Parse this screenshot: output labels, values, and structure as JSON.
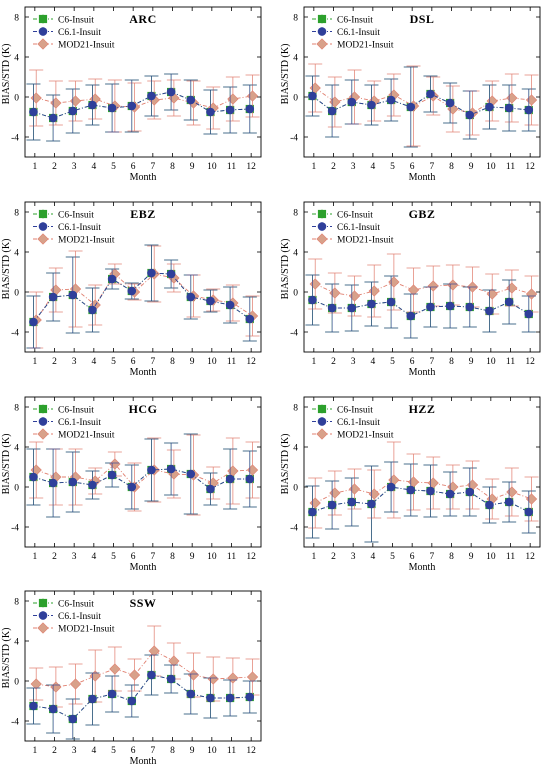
{
  "chart_data": {
    "type": "scatter",
    "x_label": "Month",
    "y_label": "BIAS/STD (K)",
    "x_ticks": [
      1,
      2,
      3,
      4,
      5,
      6,
      7,
      8,
      9,
      10,
      11,
      12
    ],
    "y_ticks": [
      -4,
      0,
      4,
      8
    ],
    "ylim": [
      -6,
      9
    ],
    "xlim": [
      0.5,
      12.5
    ],
    "legend_position": "top-left",
    "series_styles": [
      {
        "name": "C6-Insuit",
        "color": "#2ca02c",
        "marker": "square",
        "line": "dash-dot"
      },
      {
        "name": "C6.1-Insuit",
        "color": "#2f3f9a",
        "marker": "circle",
        "line": "dash-dot"
      },
      {
        "name": "MOD21-Insuit",
        "color": "#e07f6f",
        "marker_color": "#d8a18a",
        "marker": "diamond",
        "line": "dash-dot"
      }
    ],
    "panels": [
      {
        "title": "ARC",
        "series": [
          {
            "name": "C6-Insuit",
            "values": [
              -1.5,
              -2.1,
              -1.4,
              -0.8,
              -1.1,
              -0.9,
              0.1,
              0.5,
              -0.3,
              -1.5,
              -1.3,
              -1.2
            ],
            "std": [
              2.8,
              2.3,
              2.2,
              2.0,
              2.4,
              2.6,
              2.0,
              1.8,
              2.0,
              2.2,
              2.3,
              2.4
            ]
          },
          {
            "name": "C6.1-Insuit",
            "values": [
              -1.5,
              -2.1,
              -1.4,
              -0.8,
              -1.1,
              -0.9,
              0.1,
              0.5,
              -0.3,
              -1.5,
              -1.3,
              -1.2
            ],
            "std": [
              2.8,
              2.3,
              2.2,
              2.0,
              2.4,
              2.6,
              2.0,
              1.8,
              2.0,
              2.2,
              2.3,
              2.4
            ]
          },
          {
            "name": "MOD21-Insuit",
            "values": [
              -0.1,
              -0.6,
              -0.4,
              -0.2,
              -0.9,
              -1.0,
              -0.3,
              -0.1,
              -0.6,
              -1.1,
              -0.2,
              0.1
            ],
            "std": [
              2.8,
              2.2,
              2.0,
              2.0,
              2.6,
              2.4,
              1.9,
              1.8,
              2.2,
              2.1,
              2.2,
              2.1
            ]
          }
        ]
      },
      {
        "title": "DSL",
        "series": [
          {
            "name": "C6-Insuit",
            "values": [
              0.1,
              -1.4,
              -0.5,
              -0.8,
              -0.3,
              -1.0,
              0.3,
              -0.6,
              -1.8,
              -1.0,
              -1.1,
              -1.3
            ],
            "std": [
              2.0,
              2.6,
              2.2,
              2.0,
              2.1,
              4.0,
              1.8,
              2.0,
              2.4,
              2.2,
              2.3,
              2.1
            ]
          },
          {
            "name": "C6.1-Insuit",
            "values": [
              0.1,
              -1.4,
              -0.5,
              -0.8,
              -0.3,
              -1.0,
              0.3,
              -0.6,
              -1.8,
              -1.0,
              -1.1,
              -1.3
            ],
            "std": [
              2.0,
              2.6,
              2.2,
              2.0,
              2.1,
              4.0,
              1.8,
              2.0,
              2.4,
              2.2,
              2.3,
              2.1
            ]
          },
          {
            "name": "MOD21-Insuit",
            "values": [
              0.9,
              -0.5,
              0.0,
              -0.4,
              0.2,
              -0.9,
              0.1,
              -1.2,
              -1.6,
              -0.4,
              -0.1,
              -0.3
            ],
            "std": [
              2.4,
              2.5,
              2.7,
              2.0,
              2.1,
              4.0,
              1.9,
              2.3,
              2.2,
              2.0,
              2.4,
              2.5
            ]
          }
        ]
      },
      {
        "title": "EBZ",
        "series": [
          {
            "name": "C6-Insuit",
            "values": [
              -3.0,
              -0.5,
              -0.3,
              -1.8,
              1.3,
              0.1,
              1.9,
              1.8,
              -0.5,
              -0.9,
              -1.3,
              -2.7
            ],
            "std": [
              2.6,
              2.4,
              3.8,
              2.2,
              1.0,
              0.8,
              2.8,
              1.4,
              2.2,
              1.1,
              1.8,
              2.2
            ]
          },
          {
            "name": "C6.1-Insuit",
            "values": [
              -3.0,
              -0.5,
              -0.3,
              -1.8,
              1.3,
              0.1,
              1.9,
              1.8,
              -0.5,
              -0.9,
              -1.3,
              -2.7
            ],
            "std": [
              2.6,
              2.4,
              3.8,
              2.2,
              1.0,
              0.8,
              2.8,
              1.4,
              2.2,
              1.1,
              1.8,
              2.2
            ]
          },
          {
            "name": "MOD21-Insuit",
            "values": [
              -2.8,
              0.2,
              0.3,
              -1.3,
              1.8,
              0.0,
              1.8,
              1.4,
              -0.4,
              -0.8,
              -1.1,
              -2.4
            ],
            "std": [
              2.8,
              2.2,
              3.8,
              2.0,
              1.0,
              0.8,
              2.8,
              1.4,
              2.1,
              1.1,
              1.8,
              2.0
            ]
          }
        ]
      },
      {
        "title": "GBZ",
        "series": [
          {
            "name": "C6-Insuit",
            "values": [
              -0.8,
              -1.6,
              -1.6,
              -1.2,
              -1.0,
              -2.4,
              -1.5,
              -1.4,
              -1.5,
              -1.9,
              -1.0,
              -2.2
            ],
            "std": [
              2.5,
              2.4,
              2.3,
              2.2,
              2.6,
              2.2,
              2.0,
              2.2,
              2.0,
              2.1,
              2.2,
              1.8
            ]
          },
          {
            "name": "C6.1-Insuit",
            "values": [
              -0.8,
              -1.6,
              -1.6,
              -1.2,
              -1.0,
              -2.4,
              -1.5,
              -1.4,
              -1.5,
              -1.9,
              -1.0,
              -2.2
            ],
            "std": [
              2.5,
              2.4,
              2.3,
              2.2,
              2.6,
              2.2,
              2.0,
              2.2,
              2.0,
              2.1,
              2.2,
              1.8
            ]
          },
          {
            "name": "MOD21-Insuit",
            "values": [
              0.8,
              -0.1,
              -0.4,
              0.1,
              1.0,
              0.2,
              0.6,
              0.7,
              0.5,
              -0.2,
              0.4,
              -0.2
            ],
            "std": [
              2.5,
              2.0,
              2.0,
              2.6,
              2.8,
              2.2,
              2.0,
              2.0,
              2.0,
              2.0,
              1.8,
              1.8
            ]
          }
        ]
      },
      {
        "title": "HCG",
        "series": [
          {
            "name": "C6-Insuit",
            "values": [
              1.0,
              0.4,
              0.5,
              0.2,
              1.2,
              0.0,
              1.7,
              1.8,
              1.3,
              -0.2,
              0.8,
              0.8
            ],
            "std": [
              2.8,
              3.4,
              3.0,
              1.4,
              1.2,
              2.2,
              3.1,
              2.6,
              4.0,
              1.6,
              3.0,
              2.8
            ]
          },
          {
            "name": "C6.1-Insuit",
            "values": [
              1.0,
              0.4,
              0.5,
              0.2,
              1.2,
              0.0,
              1.7,
              1.8,
              1.3,
              -0.2,
              0.8,
              0.8
            ],
            "std": [
              2.8,
              3.4,
              3.0,
              1.4,
              1.2,
              2.2,
              3.1,
              2.6,
              4.0,
              1.6,
              3.0,
              2.8
            ]
          },
          {
            "name": "MOD21-Insuit",
            "values": [
              1.7,
              1.0,
              1.0,
              0.6,
              2.3,
              0.0,
              1.7,
              1.3,
              1.2,
              0.4,
              1.6,
              1.7
            ],
            "std": [
              2.8,
              2.8,
              2.8,
              1.3,
              1.2,
              2.4,
              3.2,
              2.4,
              4.0,
              1.6,
              3.3,
              2.8
            ]
          }
        ]
      },
      {
        "title": "HZZ",
        "series": [
          {
            "name": "C6-Insuit",
            "values": [
              -2.5,
              -1.8,
              -1.5,
              -1.7,
              0.0,
              -0.3,
              -0.4,
              -0.7,
              -0.5,
              -1.8,
              -1.5,
              -2.5
            ],
            "std": [
              2.6,
              2.4,
              2.4,
              3.8,
              2.5,
              2.6,
              2.6,
              2.2,
              2.4,
              1.8,
              2.0,
              2.1
            ]
          },
          {
            "name": "C6.1-Insuit",
            "values": [
              -2.5,
              -1.8,
              -1.5,
              -1.7,
              0.0,
              -0.3,
              -0.4,
              -0.7,
              -0.5,
              -1.8,
              -1.5,
              -2.5
            ],
            "std": [
              2.6,
              2.4,
              2.4,
              3.8,
              2.5,
              2.6,
              2.6,
              2.2,
              2.4,
              1.8,
              2.0,
              2.1
            ]
          },
          {
            "name": "MOD21-Insuit",
            "values": [
              -1.6,
              -0.6,
              -0.2,
              -0.7,
              0.7,
              0.5,
              0.4,
              0.0,
              0.2,
              -1.2,
              -0.5,
              -1.2
            ],
            "std": [
              2.5,
              2.2,
              2.0,
              2.4,
              3.8,
              2.8,
              2.6,
              2.2,
              2.4,
              2.0,
              2.4,
              2.2
            ]
          }
        ]
      },
      {
        "title": "SSW",
        "series": [
          {
            "name": "C6-Insuit",
            "values": [
              -2.5,
              -2.8,
              -3.8,
              -1.8,
              -1.3,
              -2.0,
              0.6,
              0.2,
              -1.3,
              -1.7,
              -1.7,
              -1.6
            ],
            "std": [
              1.8,
              2.4,
              2.0,
              2.6,
              1.8,
              1.6,
              2.0,
              1.4,
              2.0,
              2.0,
              1.8,
              1.6
            ]
          },
          {
            "name": "C6.1-Insuit",
            "values": [
              -2.5,
              -2.8,
              -3.8,
              -1.8,
              -1.3,
              -2.0,
              0.6,
              0.2,
              -1.3,
              -1.7,
              -1.7,
              -1.6
            ],
            "std": [
              1.8,
              2.4,
              2.0,
              2.6,
              1.8,
              1.6,
              2.0,
              1.4,
              2.0,
              2.0,
              1.8,
              1.6
            ]
          },
          {
            "name": "MOD21-Insuit",
            "values": [
              -0.3,
              -0.6,
              -0.3,
              0.5,
              1.2,
              0.6,
              3.0,
              2.0,
              0.6,
              0.2,
              0.3,
              0.4
            ],
            "std": [
              1.6,
              2.0,
              2.0,
              2.6,
              2.2,
              1.6,
              2.5,
              1.8,
              2.2,
              2.2,
              2.0,
              1.8
            ]
          }
        ]
      }
    ]
  }
}
